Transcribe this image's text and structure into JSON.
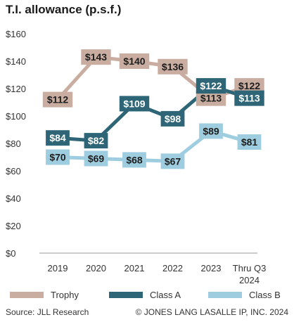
{
  "title": "T.I. allowance (p.s.f.)",
  "chart_data": {
    "type": "line",
    "categories": [
      "2019",
      "2020",
      "2021",
      "2022",
      "2023",
      "Thru Q3 2024"
    ],
    "series": [
      {
        "name": "Trophy",
        "color": "#c9ada0",
        "values": [
          112,
          143,
          140,
          136,
          113,
          122
        ],
        "labels": [
          "$112",
          "$143",
          "$140",
          "$136",
          "$113",
          "$122"
        ]
      },
      {
        "name": "Class A",
        "color": "#2e6677",
        "values": [
          84,
          82,
          109,
          98,
          122,
          113
        ],
        "labels": [
          "$84",
          "$82",
          "$109",
          "$98",
          "$122",
          "$113"
        ]
      },
      {
        "name": "Class B",
        "color": "#9fcde0",
        "values": [
          70,
          69,
          68,
          67,
          89,
          81
        ],
        "labels": [
          "$70",
          "$69",
          "$68",
          "$67",
          "$89",
          "$81"
        ]
      }
    ],
    "yticks": [
      "$0",
      "$20",
      "$40",
      "$60",
      "$80",
      "$100",
      "$120",
      "$140",
      "$160"
    ],
    "ylim": [
      0,
      160
    ],
    "grid": false,
    "legend_position": "bottom"
  },
  "footer": {
    "source": "Source: JLL Research",
    "copyright": "© JONES LANG LASALLE IP, INC. 2024"
  }
}
